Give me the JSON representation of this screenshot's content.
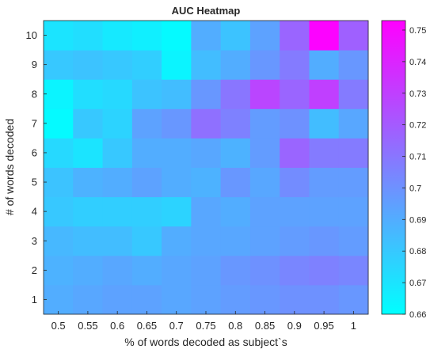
{
  "chart_data": {
    "type": "heatmap",
    "title": "AUC Heatmap",
    "xlabel": "% of words decoded as subject`s",
    "ylabel": "# of words decoded",
    "x": [
      0.5,
      0.55,
      0.6,
      0.65,
      0.7,
      0.75,
      0.8,
      0.85,
      0.9,
      0.95,
      1
    ],
    "x_tick_labels": [
      "0.5",
      "0.55",
      "0.6",
      "0.65",
      "0.7",
      "0.75",
      "0.8",
      "0.85",
      "0.9",
      "0.95",
      "1"
    ],
    "y": [
      1,
      2,
      3,
      4,
      5,
      6,
      7,
      8,
      9,
      10
    ],
    "y_tick_labels": [
      "1",
      "2",
      "3",
      "4",
      "5",
      "6",
      "7",
      "8",
      "9",
      "10"
    ],
    "values": [
      [
        0.69,
        0.692,
        0.694,
        0.694,
        0.692,
        0.694,
        0.696,
        0.698,
        0.7,
        0.7,
        0.698
      ],
      [
        0.688,
        0.69,
        0.692,
        0.69,
        0.692,
        0.694,
        0.698,
        0.7,
        0.704,
        0.706,
        0.704
      ],
      [
        0.686,
        0.684,
        0.684,
        0.68,
        0.69,
        0.692,
        0.692,
        0.694,
        0.696,
        0.698,
        0.696
      ],
      [
        0.68,
        0.678,
        0.678,
        0.678,
        0.676,
        0.692,
        0.69,
        0.694,
        0.694,
        0.694,
        0.694
      ],
      [
        0.682,
        0.688,
        0.69,
        0.694,
        0.69,
        0.688,
        0.698,
        0.692,
        0.702,
        0.696,
        0.696
      ],
      [
        0.674,
        0.67,
        0.68,
        0.69,
        0.69,
        0.692,
        0.688,
        0.696,
        0.716,
        0.708,
        0.708
      ],
      [
        0.662,
        0.68,
        0.676,
        0.694,
        0.698,
        0.712,
        0.706,
        0.696,
        0.7,
        0.684,
        0.692
      ],
      [
        0.664,
        0.672,
        0.674,
        0.682,
        0.684,
        0.698,
        0.71,
        0.728,
        0.716,
        0.73,
        0.708
      ],
      [
        0.68,
        0.682,
        0.68,
        0.678,
        0.664,
        0.684,
        0.69,
        0.698,
        0.708,
        0.69,
        0.698
      ],
      [
        0.67,
        0.672,
        0.668,
        0.666,
        0.662,
        0.69,
        0.682,
        0.694,
        0.716,
        0.752,
        0.718
      ]
    ],
    "colorbar": {
      "ticks": [
        "0.66",
        "0.67",
        "0.68",
        "0.69",
        "0.7",
        "0.71",
        "0.72",
        "0.73",
        "0.74",
        "0.75"
      ],
      "tick_values": [
        0.66,
        0.67,
        0.68,
        0.69,
        0.7,
        0.71,
        0.72,
        0.73,
        0.74,
        0.75
      ],
      "range": [
        0.66,
        0.753
      ]
    },
    "colormap": "cool",
    "colors": {
      "low": "#00ffff",
      "high": "#ff00ff"
    },
    "grid": false,
    "colorbar_position": "right"
  }
}
